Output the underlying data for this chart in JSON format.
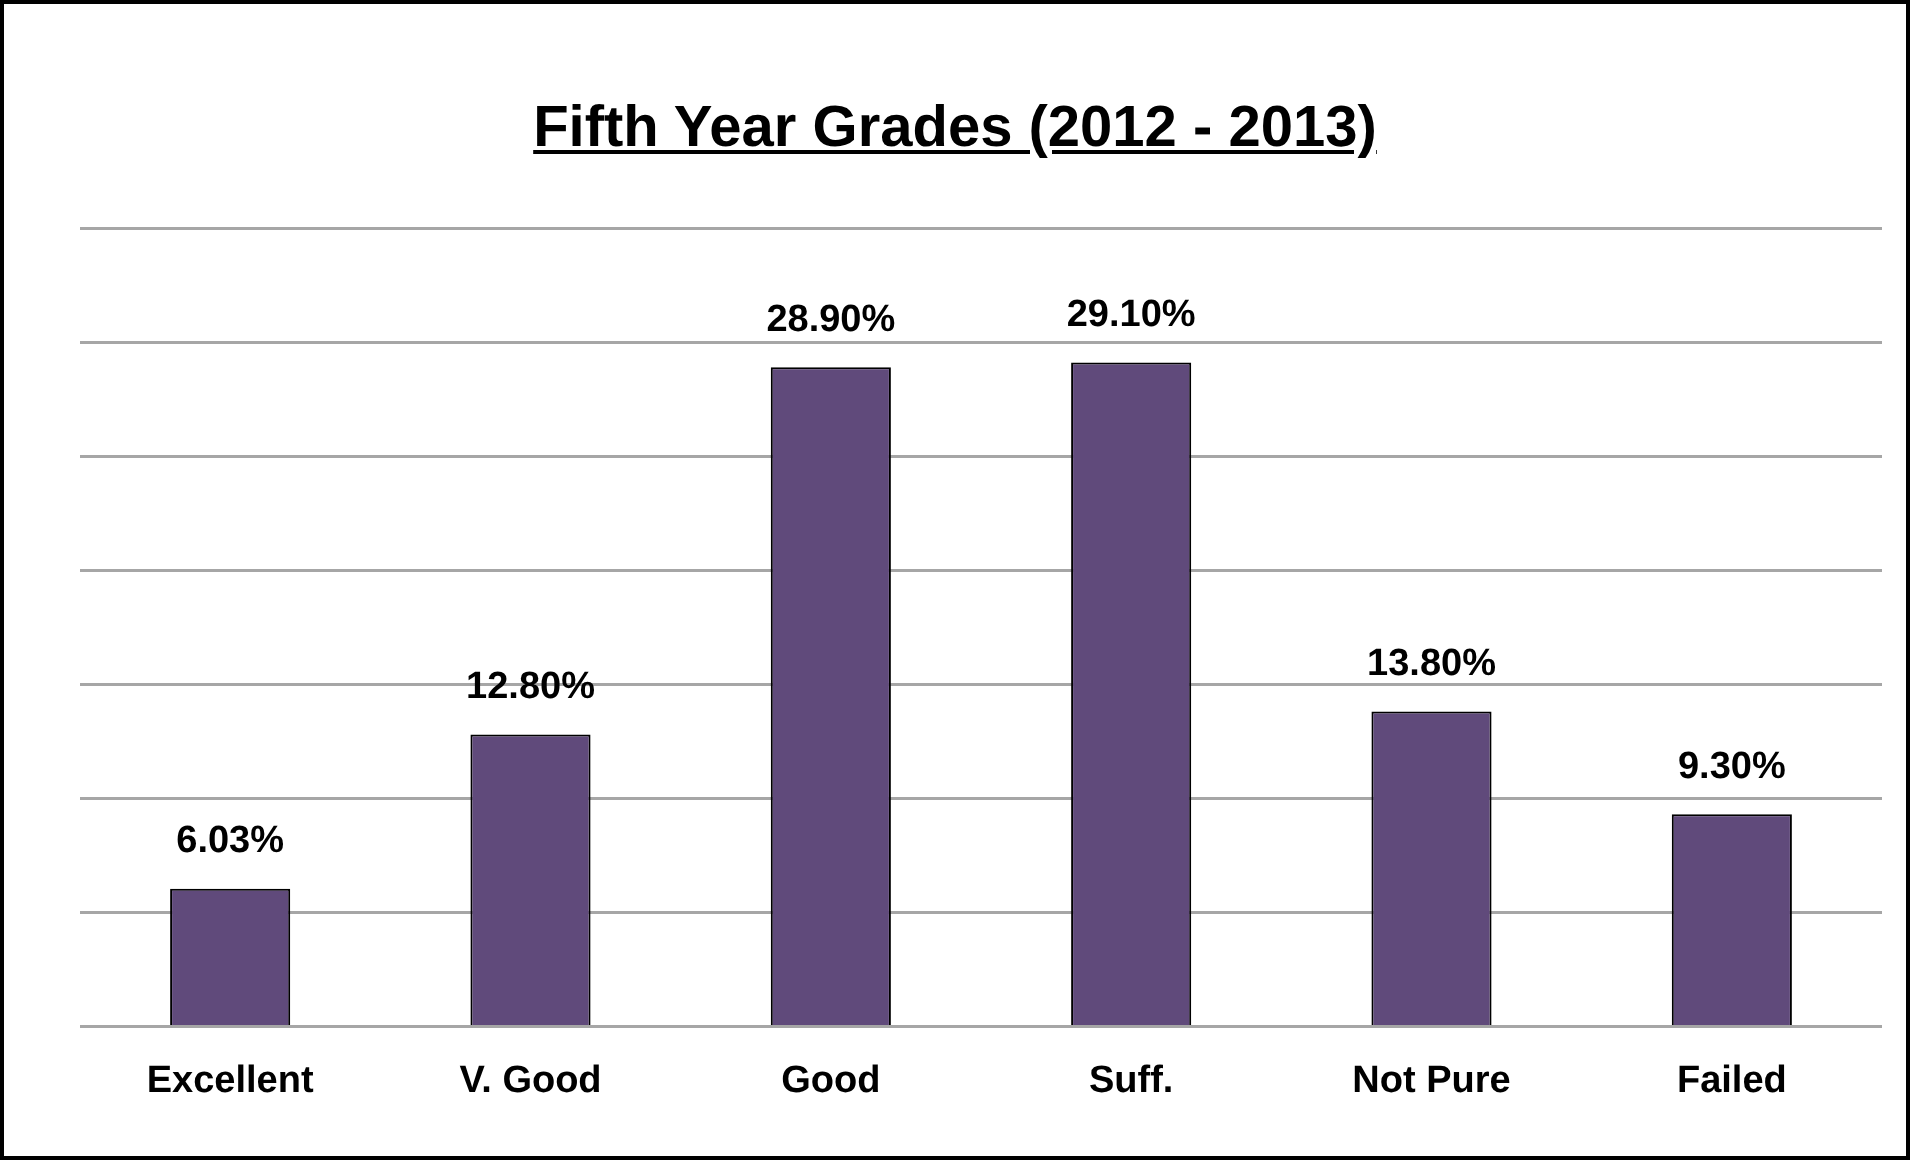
{
  "chart_data": {
    "type": "bar",
    "title": "Fifth Year Grades (2012 - 2013)",
    "categories": [
      "Excellent",
      "V. Good",
      "Good",
      "Suff.",
      "Not Pure",
      "Failed"
    ],
    "values": [
      6.03,
      12.8,
      28.9,
      29.1,
      13.8,
      9.3
    ],
    "value_labels": [
      "6.03%",
      "12.80%",
      "28.90%",
      "29.10%",
      "13.80%",
      "9.30%"
    ],
    "color": "#604a7b",
    "ylim": [
      0,
      35
    ],
    "yticks": [
      {
        "value": 0,
        "label": null
      },
      {
        "value": 5,
        "label": null
      },
      {
        "value": 10,
        "label": null
      },
      {
        "value": 15,
        "label": null
      },
      {
        "value": 20,
        "label": null
      },
      {
        "value": 25,
        "label": null
      },
      {
        "value": 30,
        "label": null
      },
      {
        "value": 35,
        "label": null
      }
    ],
    "grid": "y",
    "tick_labels": "x"
  }
}
